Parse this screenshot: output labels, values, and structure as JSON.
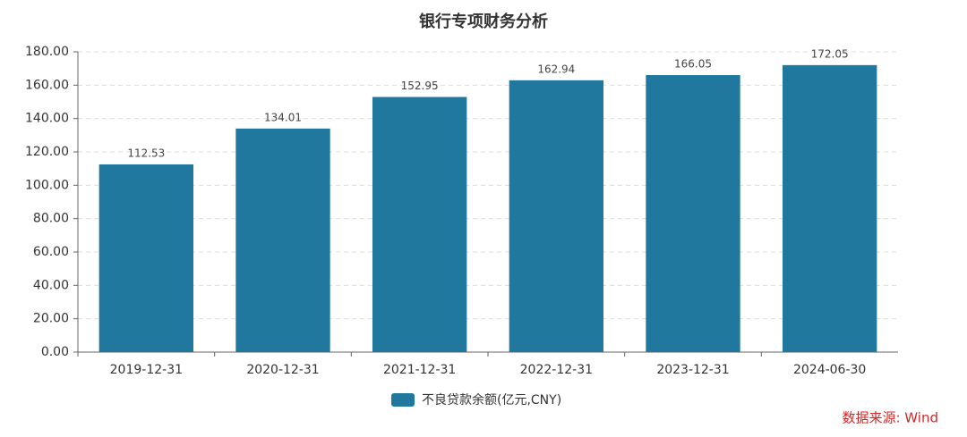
{
  "chart_data": {
    "type": "bar",
    "title": "银行专项财务分析",
    "categories": [
      "2019-12-31",
      "2020-12-31",
      "2021-12-31",
      "2022-12-31",
      "2023-12-31",
      "2024-06-30"
    ],
    "series": [
      {
        "name": "不良贷款余额(亿元,CNY)",
        "color": "#21789f",
        "values": [
          112.53,
          134.01,
          152.95,
          162.94,
          166.05,
          172.05
        ]
      }
    ],
    "ylim": [
      0,
      180
    ],
    "yticks": [
      {
        "value": 0,
        "label": "0.00"
      },
      {
        "value": 20,
        "label": "20.00"
      },
      {
        "value": 40,
        "label": "40.00"
      },
      {
        "value": 60,
        "label": "60.00"
      },
      {
        "value": 80,
        "label": "80.00"
      },
      {
        "value": 100,
        "label": "100.00"
      },
      {
        "value": 120,
        "label": "120.00"
      },
      {
        "value": 140,
        "label": "140.00"
      },
      {
        "value": 160,
        "label": "160.00"
      },
      {
        "value": 180,
        "label": "180.00"
      }
    ],
    "grid": true,
    "legend": "bottom",
    "source": "数据来源: Wind"
  }
}
